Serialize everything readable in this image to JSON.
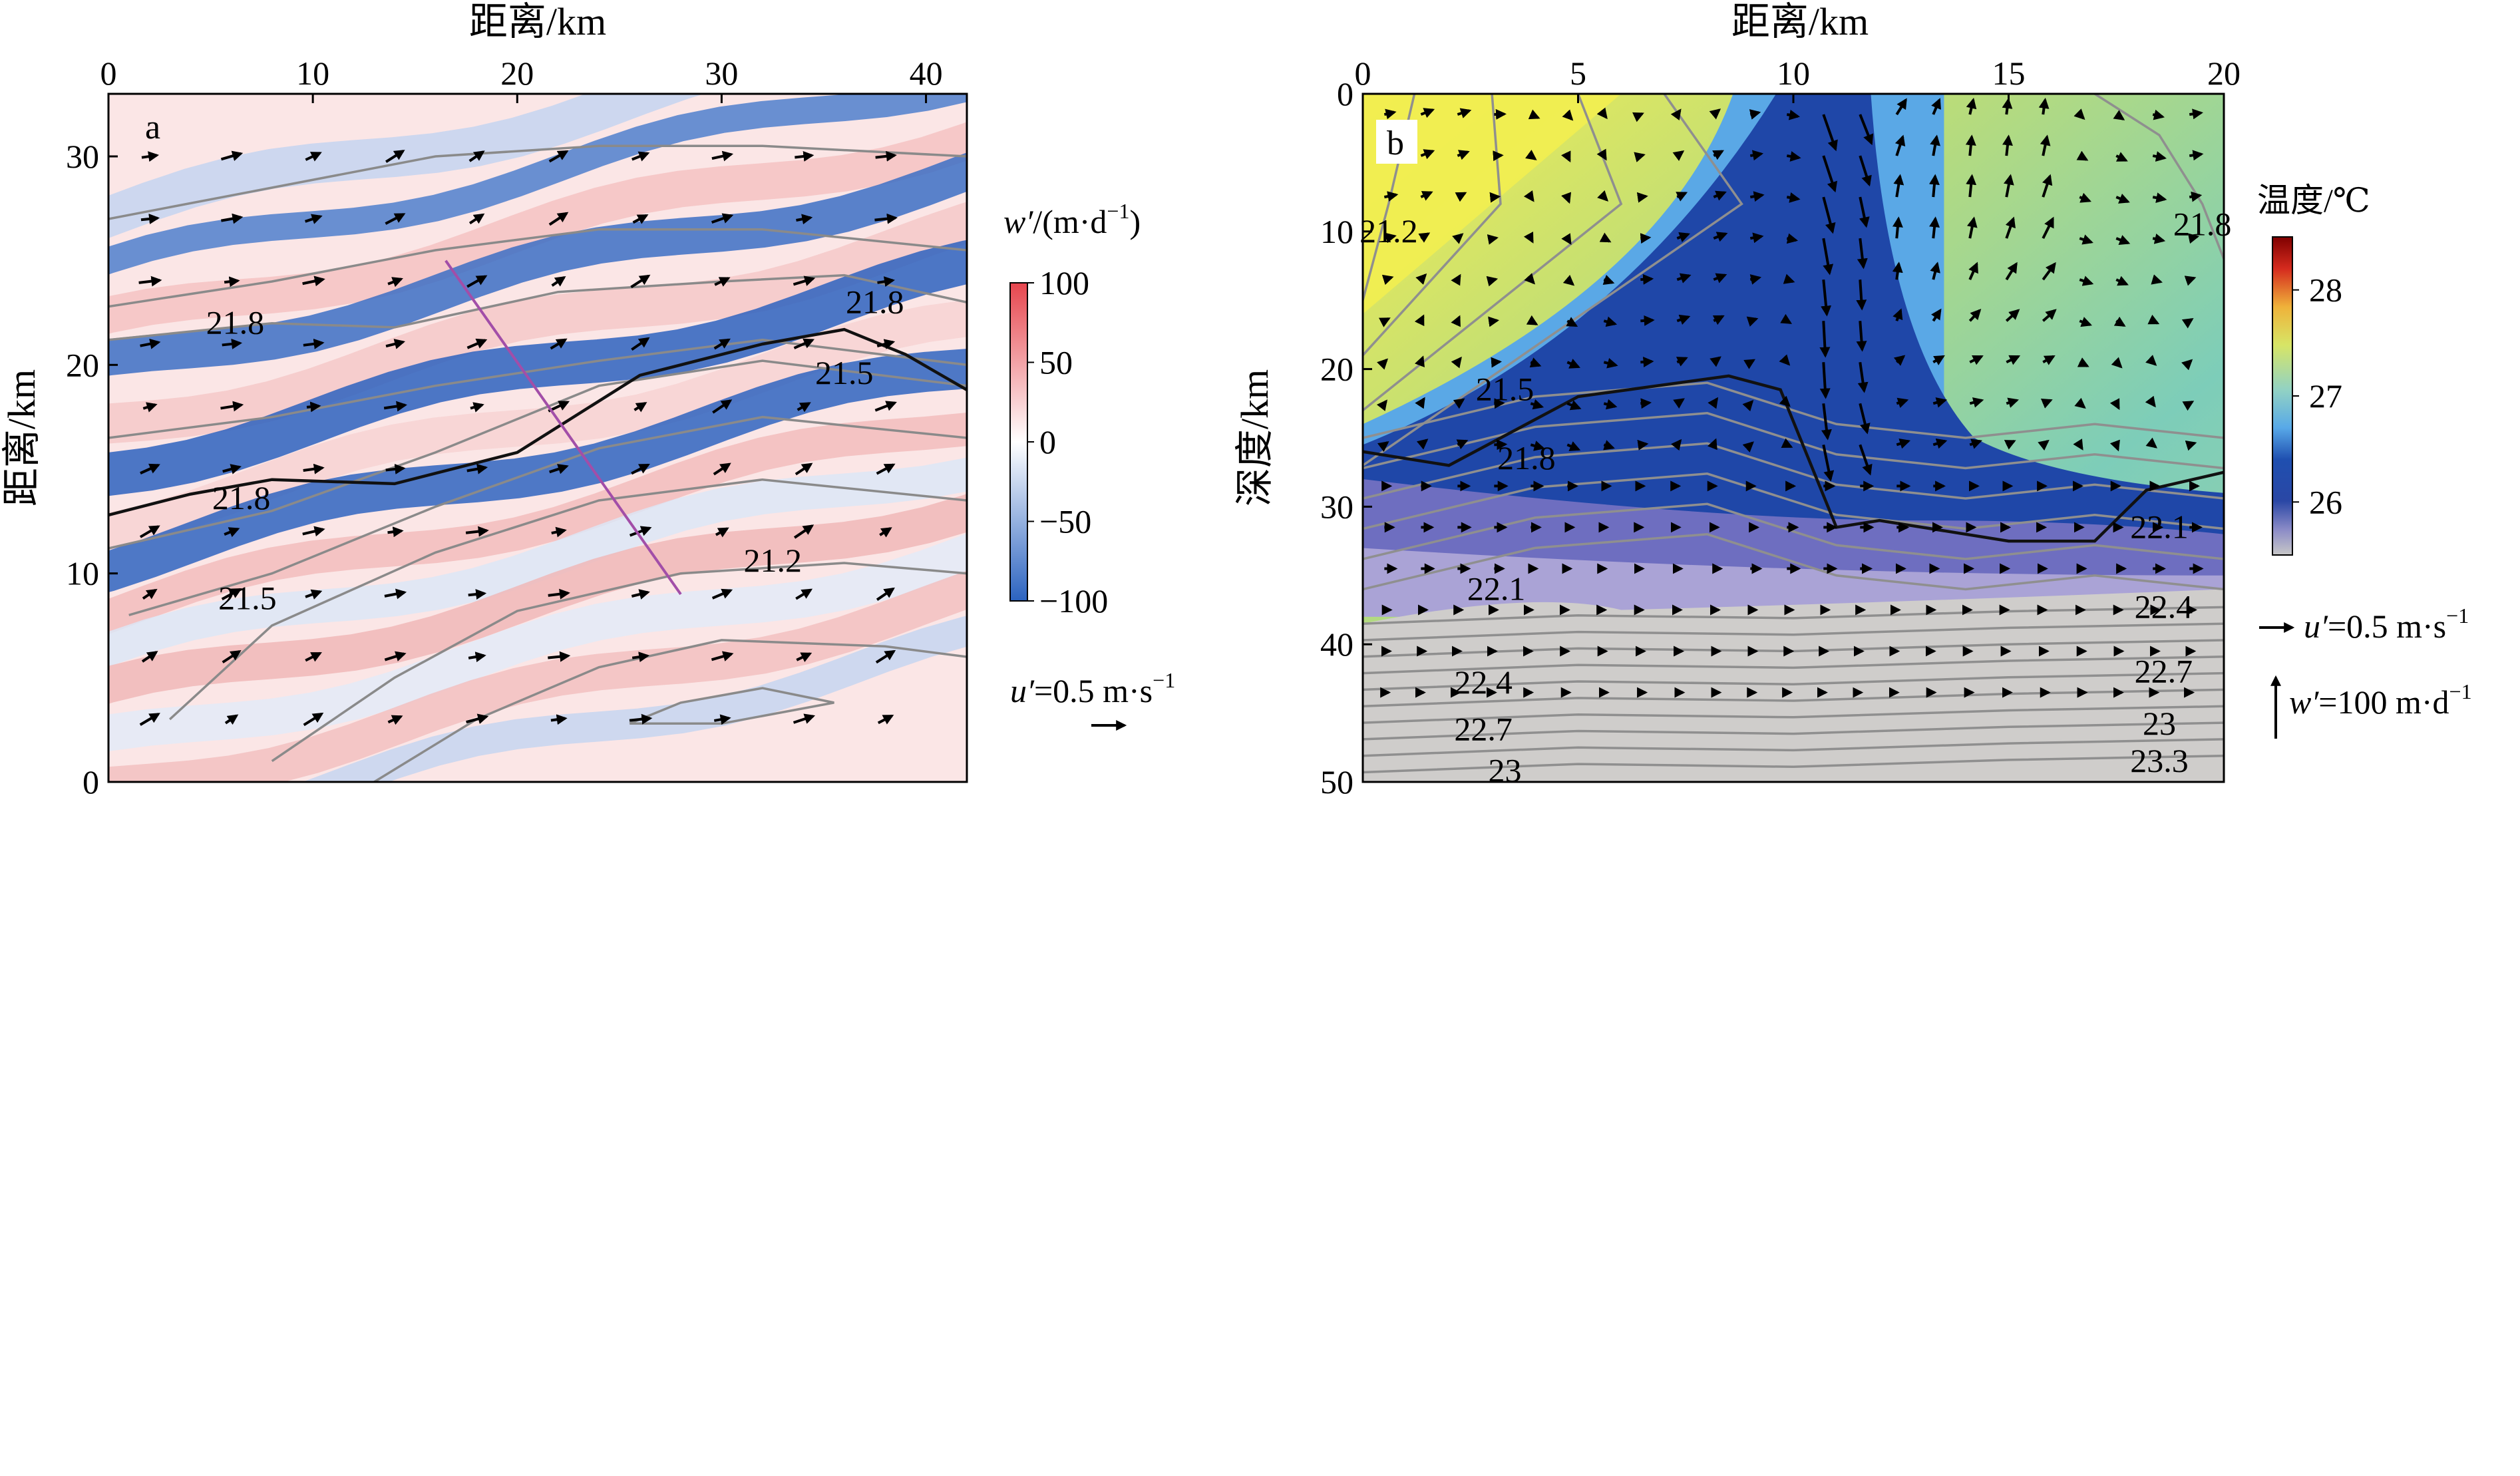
{
  "chart_data": [
    {
      "panel": "a",
      "type": "heatmap",
      "overlay": [
        "contour",
        "quiver"
      ],
      "xlabel": "距离/km",
      "ylabel": "距离/km",
      "xlim": [
        0,
        42
      ],
      "ylim": [
        0,
        33
      ],
      "xticks": [
        "0",
        "10",
        "20",
        "30",
        "40"
      ],
      "yticks": [
        "0",
        "10",
        "20",
        "30"
      ],
      "x_axis_position": "top",
      "colorbar": {
        "title_var": "w′",
        "title_unit": "/(m·d",
        "title_sup": "−1",
        "title_close": ")",
        "range": [
          -100,
          100
        ],
        "ticks": [
          "100",
          "50",
          "0",
          "−50",
          "−100"
        ],
        "colors": [
          "#2b63c0",
          "#ffffff",
          "#e6464e"
        ]
      },
      "contour_labels": [
        {
          "text": "21.8",
          "x": 6.2,
          "y": 22
        },
        {
          "text": "21.8",
          "x": 37.5,
          "y": 23
        },
        {
          "text": "21.5",
          "x": 36,
          "y": 19.6
        },
        {
          "text": "21.8",
          "x": 6.5,
          "y": 13.6
        },
        {
          "text": "21.5",
          "x": 6.8,
          "y": 8.8
        },
        {
          "text": "21.2",
          "x": 32.5,
          "y": 10.6
        }
      ],
      "section_line": {
        "from": [
          16.5,
          25
        ],
        "to": [
          28,
          9
        ],
        "color": "#a24ea8"
      },
      "vector_reference": {
        "label_var": "u′",
        "label_value": "=0.5 m·s",
        "label_sup": "−1"
      },
      "grid": false
    },
    {
      "panel": "b",
      "type": "heatmap",
      "overlay": [
        "contour",
        "quiver"
      ],
      "xlabel": "距离/km",
      "ylabel": "深度/km",
      "xlim": [
        0,
        20
      ],
      "ylim": [
        50,
        0
      ],
      "xticks": [
        "0",
        "5",
        "10",
        "15",
        "20"
      ],
      "yticks": [
        "0",
        "10",
        "20",
        "30",
        "40",
        "50"
      ],
      "x_axis_position": "top",
      "colorbar": {
        "title": "温度/℃",
        "range": [
          25.5,
          28.5
        ],
        "ticks": [
          "28",
          "27",
          "26"
        ],
        "colors": [
          "#c7c7c7",
          "#6f6fbd",
          "#1f3c9a",
          "#58a9e8",
          "#92d2c3",
          "#d7e566",
          "#efb23a",
          "#d52b1e",
          "#7f0000"
        ]
      },
      "contour_labels": [
        {
          "text": "21.2",
          "x": 0.6,
          "y": 10
        },
        {
          "text": "21.8",
          "x": 19.5,
          "y": 9.5
        },
        {
          "text": "21.5",
          "x": 3.3,
          "y": 21.5
        },
        {
          "text": "21.8",
          "x": 3.8,
          "y": 26.5
        },
        {
          "text": "22.1",
          "x": 18.5,
          "y": 31.5
        },
        {
          "text": "22.1",
          "x": 3.1,
          "y": 36
        },
        {
          "text": "22.4",
          "x": 18.6,
          "y": 37.3
        },
        {
          "text": "22.7",
          "x": 18.6,
          "y": 42
        },
        {
          "text": "22.4",
          "x": 2.8,
          "y": 42.8
        },
        {
          "text": "23",
          "x": 18.5,
          "y": 45.8
        },
        {
          "text": "22.7",
          "x": 2.8,
          "y": 46.2
        },
        {
          "text": "23.3",
          "x": 18.5,
          "y": 48.5
        },
        {
          "text": "23",
          "x": 3.3,
          "y": 49.2
        }
      ],
      "vector_reference": [
        {
          "label_var": "u′",
          "label_value": "=0.5 m·s",
          "label_sup": "−1"
        },
        {
          "label_var": "w′",
          "label_value": "=100 m·d",
          "label_sup": "−1"
        }
      ],
      "grid": false
    }
  ]
}
